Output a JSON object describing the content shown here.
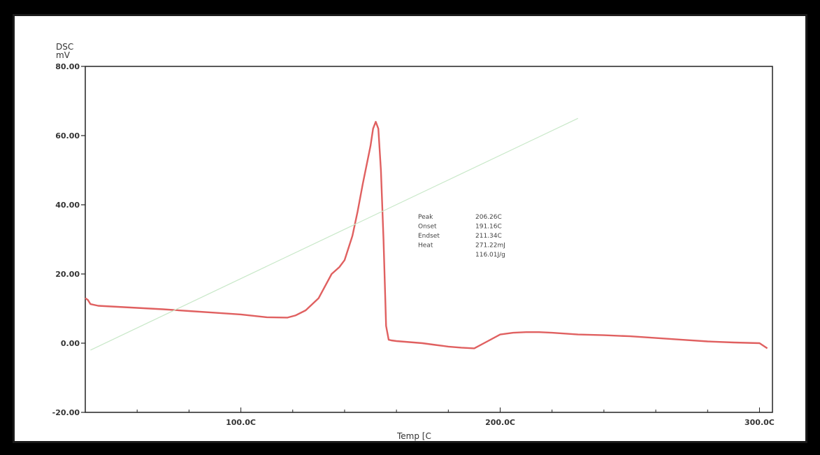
{
  "chart_data": {
    "type": "line",
    "title": "",
    "ylabel_line1": "DSC",
    "ylabel_line2": "mV",
    "xlabel": "Temp [C",
    "xlim": [
      40,
      305
    ],
    "ylim": [
      -20,
      80
    ],
    "y_ticks": [
      {
        "value": 80,
        "label": "80.00"
      },
      {
        "value": 60,
        "label": "60.00"
      },
      {
        "value": 40,
        "label": "40.00"
      },
      {
        "value": 20,
        "label": "20.00"
      },
      {
        "value": 0,
        "label": "0.00"
      },
      {
        "value": -20,
        "label": "-20.00"
      }
    ],
    "x_ticks": [
      {
        "value": 100,
        "label": "100.0C"
      },
      {
        "value": 200,
        "label": "200.0C"
      },
      {
        "value": 300,
        "label": "300.0C"
      }
    ],
    "series": [
      {
        "color": "#e06060",
        "x": [
          40,
          41,
          42,
          45,
          50,
          60,
          70,
          80,
          90,
          100,
          110,
          118,
          121,
          125,
          130,
          135,
          138,
          140,
          143,
          145,
          147,
          150,
          151,
          152,
          153,
          154,
          155,
          156,
          157,
          158,
          160,
          165,
          170,
          175,
          180,
          185,
          190,
          195,
          200,
          205,
          210,
          215,
          220,
          230,
          240,
          250,
          260,
          270,
          280,
          290,
          300,
          303
        ],
        "y": [
          13,
          12.5,
          11.3,
          10.8,
          10.6,
          10.2,
          9.8,
          9.3,
          8.8,
          8.3,
          7.5,
          7.4,
          8.0,
          9.5,
          13,
          20,
          22,
          24,
          31,
          38,
          46,
          57,
          62,
          64,
          62,
          50,
          30,
          5,
          1,
          0.8,
          0.6,
          0.3,
          0,
          -0.5,
          -1,
          -1.3,
          -1.5,
          0.5,
          2.5,
          3,
          3.2,
          3.2,
          3.0,
          2.5,
          2.3,
          2.0,
          1.5,
          1.0,
          0.5,
          0.2,
          0,
          -1.5
        ]
      },
      {
        "color": "#c8e8c8",
        "x": [
          42,
          230
        ],
        "y": [
          -2,
          65
        ]
      }
    ],
    "annotations": [
      {
        "label": "Peak",
        "value": "206.26C"
      },
      {
        "label": "Onset",
        "value": "191.16C"
      },
      {
        "label": "Endset",
        "value": "211.34C"
      },
      {
        "label": "Heat",
        "value": "271.22mJ"
      },
      {
        "label": "",
        "value": "116.01J/g"
      }
    ],
    "grid": false
  }
}
